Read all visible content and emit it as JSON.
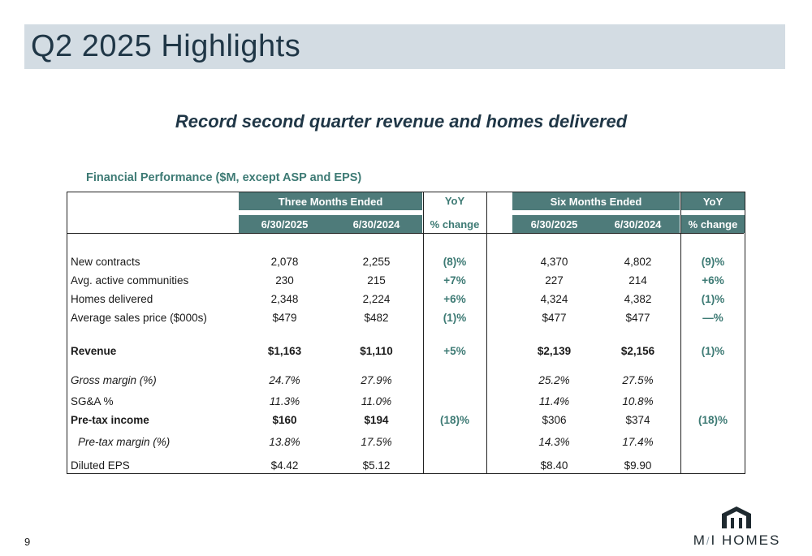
{
  "slide": {
    "title": "Q2 2025 Highlights",
    "subtitle": "Record second quarter revenue and homes delivered",
    "page_number": "9"
  },
  "table": {
    "caption": "Financial Performance ($M, except ASP and EPS)",
    "three_months_header": "Three Months Ended",
    "six_months_header": "Six Months Ended",
    "yoy_label": "YoY",
    "pct_change_label": "% change",
    "period_cols": [
      "6/30/2025",
      "6/30/2024"
    ],
    "rows": [
      {
        "label": "New contracts",
        "q25": "2,078",
        "q24": "2,255",
        "q_yoy": "(8)%",
        "h25": "4,370",
        "h24": "4,802",
        "h_yoy": "(9)%"
      },
      {
        "label": "Avg. active communities",
        "q25": "230",
        "q24": "215",
        "q_yoy": "+7%",
        "h25": "227",
        "h24": "214",
        "h_yoy": "+6%"
      },
      {
        "label": "Homes delivered",
        "q25": "2,348",
        "q24": "2,224",
        "q_yoy": "+6%",
        "h25": "4,324",
        "h24": "4,382",
        "h_yoy": "(1)%"
      },
      {
        "label": "Average sales price ($000s)",
        "q25": "$479",
        "q24": "$482",
        "q_yoy": "(1)%",
        "h25": "$477",
        "h24": "$477",
        "h_yoy": "—%"
      },
      {
        "label": "Revenue",
        "q25": "$1,163",
        "q24": "$1,110",
        "q_yoy": "+5%",
        "h25": "$2,139",
        "h24": "$2,156",
        "h_yoy": "(1)%"
      },
      {
        "label": "Gross margin (%)",
        "q25": "24.7%",
        "q24": "27.9%",
        "q_yoy": "",
        "h25": "25.2%",
        "h24": "27.5%",
        "h_yoy": ""
      },
      {
        "label": "SG&A %",
        "q25": "11.3%",
        "q24": "11.0%",
        "q_yoy": "",
        "h25": "11.4%",
        "h24": "10.8%",
        "h_yoy": ""
      },
      {
        "label": "Pre-tax income",
        "q25": "$160",
        "q24": "$194",
        "q_yoy": "(18)%",
        "h25": "$306",
        "h24": "$374",
        "h_yoy": "(18)%"
      },
      {
        "label": "Pre-tax margin (%)",
        "q25": "13.8%",
        "q24": "17.5%",
        "q_yoy": "",
        "h25": "14.3%",
        "h24": "17.4%",
        "h_yoy": ""
      },
      {
        "label": "Diluted EPS",
        "q25": "$4.42",
        "q24": "$5.12",
        "q_yoy": "",
        "h25": "$8.40",
        "h24": "$9.90",
        "h_yoy": ""
      }
    ]
  },
  "logo": {
    "text": "M/I HOMES",
    "left_part": "M",
    "slash": "/",
    "right_part": "I HOMES",
    "icon": "house-icon",
    "color": "#1f2a30"
  },
  "colors": {
    "title_band": "#d3dce3",
    "title_text": "#1f3646",
    "header_fill": "#4e7b7a",
    "accent_teal": "#3d7a74"
  }
}
